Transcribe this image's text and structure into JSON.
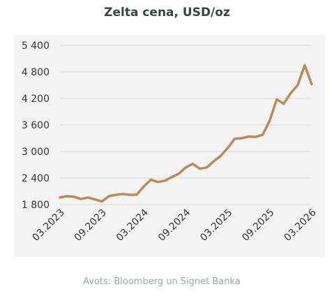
{
  "chart_data": {
    "type": "line",
    "title": "Zelta cena, USD/oz",
    "xlabel": "",
    "ylabel": "",
    "ylim": [
      1800,
      5400
    ],
    "y_ticks": [
      1800,
      2400,
      3000,
      3600,
      4200,
      4800,
      5400
    ],
    "y_tick_labels": [
      "1 800",
      "2 400",
      "3 000",
      "3 600",
      "4 200",
      "4 800",
      "5 400"
    ],
    "x_range": [
      "2023-03",
      "2026-03"
    ],
    "x_tick_labels": [
      "03.2023",
      "09.2023",
      "03.2024",
      "09.2024",
      "03.2025",
      "09.2025",
      "03.2026"
    ],
    "grid": "horizontal",
    "line_color": "#b98a5a",
    "series": [
      {
        "x": [
          "2023-03",
          "2023-04",
          "2023-05",
          "2023-06",
          "2023-07",
          "2023-08",
          "2023-09",
          "2023-10",
          "2023-11",
          "2023-12",
          "2024-01",
          "2024-02",
          "2024-03",
          "2024-04",
          "2024-05",
          "2024-06",
          "2024-07",
          "2024-08",
          "2024-09",
          "2024-10",
          "2024-11",
          "2024-12",
          "2025-01",
          "2025-02",
          "2025-03",
          "2025-04",
          "2025-05",
          "2025-06",
          "2025-07",
          "2025-08",
          "2025-09",
          "2025-10",
          "2025-11",
          "2025-12",
          "2026-01",
          "2026-02",
          "2026-03"
        ],
        "values": [
          1960,
          1990,
          1975,
          1925,
          1960,
          1915,
          1870,
          1990,
          2020,
          2040,
          2020,
          2025,
          2210,
          2360,
          2310,
          2340,
          2420,
          2500,
          2640,
          2720,
          2610,
          2640,
          2780,
          2900,
          3080,
          3290,
          3300,
          3340,
          3330,
          3380,
          3700,
          4180,
          4080,
          4320,
          4500,
          4950,
          4520
        ]
      }
    ]
  },
  "source": "Avots: Bloomberg un Signet Banka"
}
